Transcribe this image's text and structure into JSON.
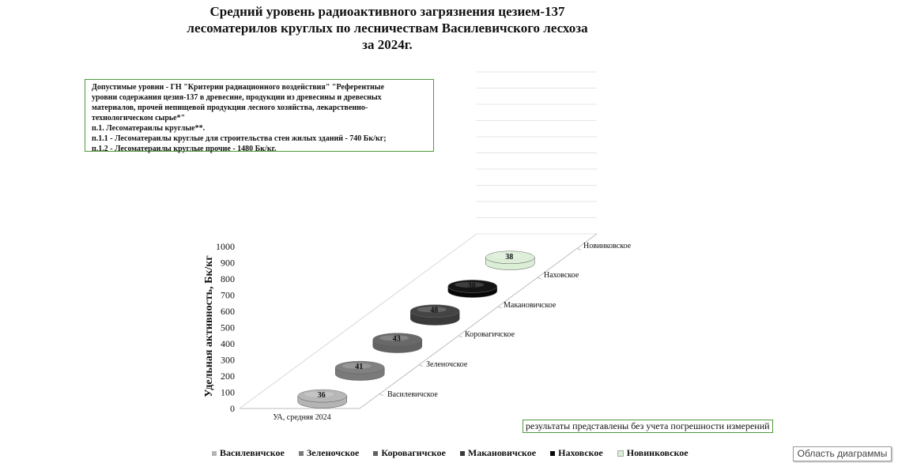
{
  "title_lines": [
    "Средний уровень радиоактивного загрязнения цезием-137",
    "лесоматерилов круглых по лесничествам Василевичского лесхоза",
    "за 2024г."
  ],
  "norms_lines": [
    "Допустимые уровни - ГН \"Критерии радиационного воздействия\" \"Референтные",
    "уровни содержания цезия-137 в древесине, продукции из древесины и древесных",
    "материалов, прочей непищевой продукции лесного хозяйства,  лекарственно-",
    "технологическом сырье*\"",
    "п.1. Лесоматераилы круглые**.",
    "п.1.1 - Лесоматераилы круглые для строительства стен жилых зданий - 740 Бк/кг;",
    "п.1.2 - Лесоматераилы круглые прочие - 1480 Бк/кг."
  ],
  "note": "результаты представлены без учета погрешности измерений",
  "area_label": "Область диаграммы",
  "colors": {
    "Василевичское": "#b4b4b4",
    "Зеленочское": "#7a7a7a",
    "Коровагичское": "#626262",
    "Макановичское": "#3a3a3a",
    "Наховское": "#080808",
    "Новинковское": "#dbeed6",
    "frame": "#4f9a3a"
  },
  "chart_data": {
    "type": "bar",
    "subtype": "3d-cylinder",
    "categories": [
      "УА, средняя 2024"
    ],
    "series": [
      {
        "name": "Василевичское",
        "values": [
          36
        ]
      },
      {
        "name": "Зеленочское",
        "values": [
          41
        ]
      },
      {
        "name": "Коровагичское",
        "values": [
          43
        ]
      },
      {
        "name": "Макановичское",
        "values": [
          48
        ]
      },
      {
        "name": "Наховское",
        "values": [
          30
        ]
      },
      {
        "name": "Новинковское",
        "values": [
          38
        ]
      }
    ],
    "ylabel": "Удельная активность, Бк/кг",
    "xlabel": "",
    "ylim": [
      0,
      1000
    ],
    "yticks": [
      0,
      100,
      200,
      300,
      400,
      500,
      600,
      700,
      800,
      900,
      1000
    ],
    "grid": true,
    "legend": "bottom"
  }
}
